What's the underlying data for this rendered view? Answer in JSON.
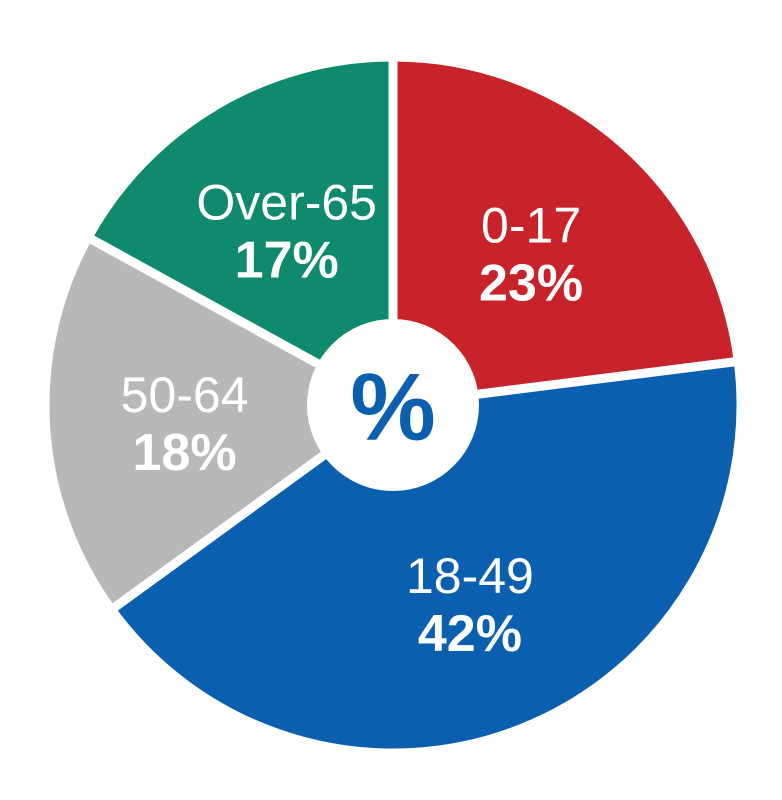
{
  "chart_data": {
    "type": "pie",
    "center_symbol": "%",
    "slices": [
      {
        "label": "0-17",
        "value": 23,
        "display": "23%",
        "color": "#c8222a"
      },
      {
        "label": "18-49",
        "value": 42,
        "display": "42%",
        "color": "#0a5fae"
      },
      {
        "label": "50-64",
        "value": 18,
        "display": "18%",
        "color": "#b7b8ba"
      },
      {
        "label": "Over-65",
        "value": 17,
        "display": "17%",
        "color": "#0f8a6d"
      }
    ],
    "legend": "none",
    "grid": false
  },
  "colors": {
    "separator": "#ffffff",
    "center_fill": "#ffffff",
    "center_text": "#0a5fae",
    "label_text": "#ffffff"
  }
}
